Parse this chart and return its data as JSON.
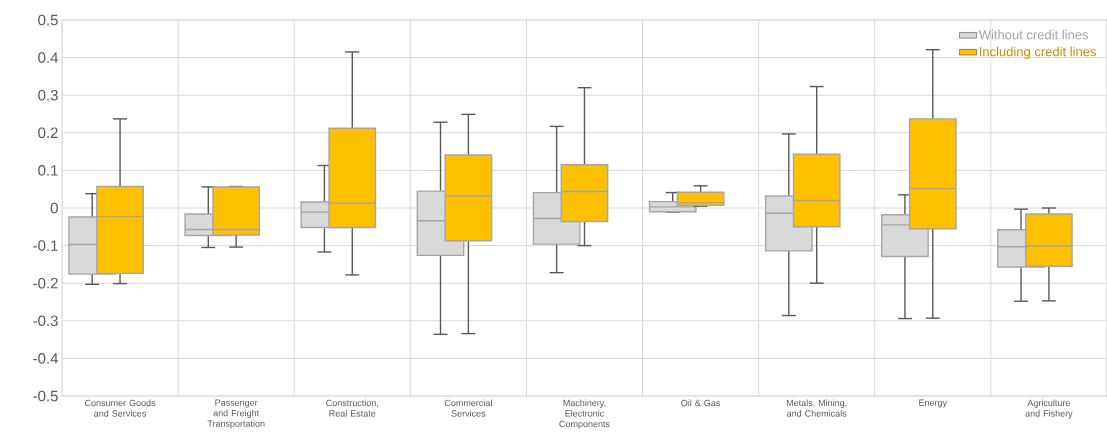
{
  "chart_data": {
    "type": "box",
    "categories": [
      "Consumer Goods and Services",
      "Passenger and Freight Transportation",
      "Construction, Real Estate",
      "Commercial Services",
      "Machinery, Electronic Components",
      "Oil & Gas",
      "Metals, Mining, and Chemicals",
      "Energy",
      "Agriculture and Fishery"
    ],
    "series": [
      {
        "name": "Without credit lines",
        "color": "#d9d9d9",
        "boxes": [
          {
            "low": -0.203,
            "q1": -0.176,
            "median": -0.097,
            "q3": -0.024,
            "high": 0.038
          },
          {
            "low": -0.105,
            "q1": -0.073,
            "median": -0.057,
            "q3": -0.016,
            "high": 0.056
          },
          {
            "low": -0.117,
            "q1": -0.052,
            "median": -0.011,
            "q3": 0.016,
            "high": 0.113
          },
          {
            "low": -0.336,
            "q1": -0.126,
            "median": -0.034,
            "q3": 0.045,
            "high": 0.228
          },
          {
            "low": -0.172,
            "q1": -0.096,
            "median": -0.028,
            "q3": 0.041,
            "high": 0.217
          },
          {
            "low": -0.011,
            "q1": -0.01,
            "median": 0.003,
            "q3": 0.017,
            "high": 0.041
          },
          {
            "low": -0.286,
            "q1": -0.114,
            "median": -0.014,
            "q3": 0.032,
            "high": 0.197
          },
          {
            "low": -0.294,
            "q1": -0.129,
            "median": -0.045,
            "q3": -0.018,
            "high": 0.035
          },
          {
            "low": -0.248,
            "q1": -0.157,
            "median": -0.103,
            "q3": -0.058,
            "high": -0.003
          }
        ]
      },
      {
        "name": "Including credit lines",
        "color": "#ffc000",
        "boxes": [
          {
            "low": -0.201,
            "q1": -0.174,
            "median": -0.023,
            "q3": 0.057,
            "high": 0.237
          },
          {
            "low": -0.104,
            "q1": -0.072,
            "median": -0.057,
            "q3": 0.056,
            "high": 0.057
          },
          {
            "low": -0.178,
            "q1": -0.052,
            "median": 0.013,
            "q3": 0.212,
            "high": 0.415
          },
          {
            "low": -0.334,
            "q1": -0.087,
            "median": 0.032,
            "q3": 0.141,
            "high": 0.249
          },
          {
            "low": -0.1,
            "q1": -0.036,
            "median": 0.044,
            "q3": 0.115,
            "high": 0.32
          },
          {
            "low": 0.005,
            "q1": 0.007,
            "median": 0.014,
            "q3": 0.042,
            "high": 0.059
          },
          {
            "low": -0.2,
            "q1": -0.05,
            "median": 0.02,
            "q3": 0.143,
            "high": 0.323
          },
          {
            "low": -0.293,
            "q1": -0.055,
            "median": 0.052,
            "q3": 0.237,
            "high": 0.421
          },
          {
            "low": -0.247,
            "q1": -0.155,
            "median": -0.101,
            "q3": -0.016,
            "high": 0.0
          }
        ]
      }
    ],
    "ylim": [
      -0.5,
      0.5
    ],
    "yticks": [
      -0.5,
      -0.4,
      -0.3,
      -0.2,
      -0.1,
      0,
      0.1,
      0.2,
      0.3,
      0.4,
      0.5
    ],
    "grid": true,
    "legend": "top right"
  }
}
